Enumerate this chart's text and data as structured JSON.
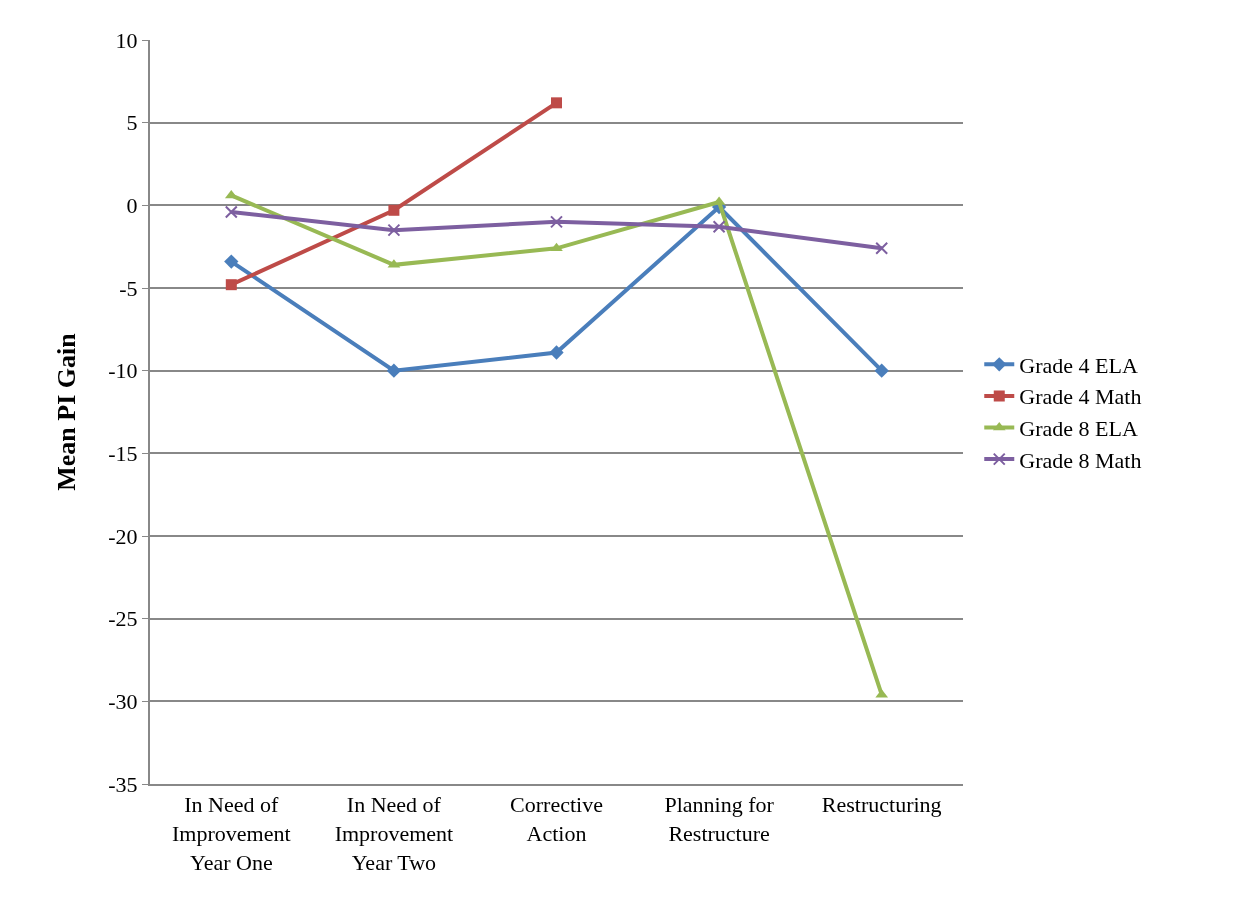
{
  "chart_data": {
    "type": "line",
    "ylabel": "Mean PI Gain",
    "categories": [
      "In Need of Improvement Year One",
      "In Need of Improvement Year Two",
      "Corrective Action",
      "Planning for Restructure",
      "Restructuring"
    ],
    "series": [
      {
        "name": "Grade 4 ELA",
        "color": "#4a7ebb",
        "marker": "diamond",
        "values": [
          -3.4,
          -10.0,
          -8.9,
          -0.1,
          -10.0
        ]
      },
      {
        "name": "Grade 4 Math",
        "color": "#be4b48",
        "marker": "square",
        "values": [
          -4.8,
          -0.3,
          6.2,
          null,
          null
        ]
      },
      {
        "name": "Grade 8 ELA",
        "color": "#98b954",
        "marker": "triangle",
        "values": [
          0.6,
          -3.6,
          -2.6,
          0.2,
          -29.6
        ]
      },
      {
        "name": "Grade 8 Math",
        "color": "#7d5fa0",
        "marker": "cross",
        "values": [
          -0.4,
          -1.5,
          -1.0,
          -1.3,
          -2.6
        ]
      }
    ],
    "ylim": [
      -35,
      10
    ],
    "yticks": [
      -35,
      -30,
      -25,
      -20,
      -15,
      -10,
      -5,
      0,
      5,
      10
    ],
    "grid": "y",
    "legend": "right",
    "line_style": "solid"
  }
}
